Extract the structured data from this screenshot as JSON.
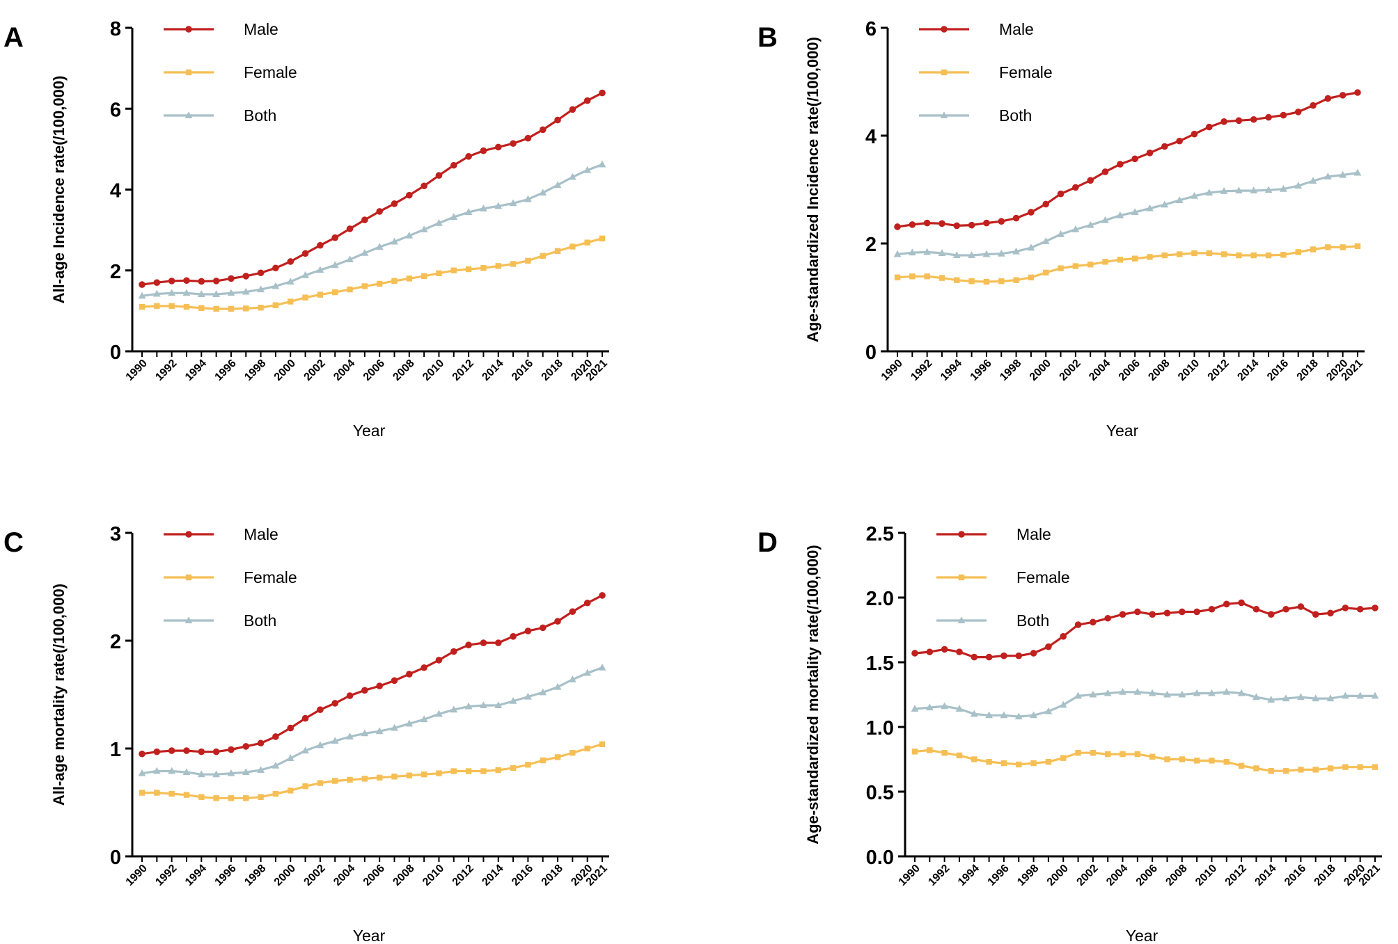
{
  "figure": {
    "years": [
      1990,
      1991,
      1992,
      1993,
      1994,
      1995,
      1996,
      1997,
      1998,
      1999,
      2000,
      2001,
      2002,
      2003,
      2004,
      2005,
      2006,
      2007,
      2008,
      2009,
      2010,
      2011,
      2012,
      2013,
      2014,
      2015,
      2016,
      2017,
      2018,
      2019,
      2020,
      2021
    ],
    "colors": {
      "Male": "#c0201e",
      "Female": "#f5bf55",
      "Both": "#a8c0c8"
    }
  },
  "chart_data": [
    {
      "panel_label": "A",
      "type": "line",
      "xlabel": "Year",
      "ylabel": "All-age Incidence rate(/100,000)",
      "ylim": [
        0,
        8
      ],
      "yticks": [
        "0",
        "2",
        "4",
        "6",
        "8"
      ],
      "xticks": [
        "1990",
        "1992",
        "1994",
        "1996",
        "1998",
        "2000",
        "2002",
        "2004",
        "2006",
        "2008",
        "2010",
        "2012",
        "2014",
        "2016",
        "2018",
        "2020",
        "2021"
      ],
      "legend_position": "top-left",
      "series": [
        {
          "name": "Male",
          "marker": "circle",
          "values": [
            1.65,
            1.7,
            1.74,
            1.75,
            1.73,
            1.74,
            1.8,
            1.86,
            1.94,
            2.06,
            2.22,
            2.42,
            2.62,
            2.81,
            3.03,
            3.25,
            3.46,
            3.65,
            3.86,
            4.09,
            4.35,
            4.6,
            4.82,
            4.96,
            5.05,
            5.14,
            5.27,
            5.48,
            5.72,
            5.98,
            6.2,
            6.39
          ]
        },
        {
          "name": "Female",
          "marker": "square",
          "values": [
            1.1,
            1.12,
            1.12,
            1.1,
            1.07,
            1.05,
            1.05,
            1.06,
            1.08,
            1.14,
            1.23,
            1.33,
            1.4,
            1.46,
            1.53,
            1.61,
            1.67,
            1.74,
            1.8,
            1.86,
            1.93,
            2.0,
            2.03,
            2.06,
            2.11,
            2.16,
            2.24,
            2.36,
            2.48,
            2.59,
            2.69,
            2.79
          ]
        },
        {
          "name": "Both",
          "marker": "triangle",
          "values": [
            1.37,
            1.42,
            1.44,
            1.44,
            1.41,
            1.41,
            1.44,
            1.47,
            1.53,
            1.61,
            1.72,
            1.88,
            2.01,
            2.13,
            2.27,
            2.43,
            2.58,
            2.71,
            2.86,
            3.01,
            3.17,
            3.32,
            3.44,
            3.53,
            3.59,
            3.66,
            3.76,
            3.92,
            4.11,
            4.31,
            4.48,
            4.62
          ]
        }
      ]
    },
    {
      "panel_label": "B",
      "type": "line",
      "xlabel": "Year",
      "ylabel": "Age-standardized Incidence rate(/100,000)",
      "ylim": [
        0,
        6
      ],
      "yticks": [
        "0",
        "2",
        "4",
        "6"
      ],
      "xticks": [
        "1990",
        "1992",
        "1994",
        "1996",
        "1998",
        "2000",
        "2002",
        "2004",
        "2006",
        "2008",
        "2010",
        "2012",
        "2014",
        "2016",
        "2018",
        "2020",
        "2021"
      ],
      "legend_position": "top-left",
      "series": [
        {
          "name": "Male",
          "marker": "circle",
          "values": [
            2.31,
            2.35,
            2.38,
            2.37,
            2.33,
            2.34,
            2.38,
            2.41,
            2.47,
            2.58,
            2.73,
            2.92,
            3.04,
            3.17,
            3.33,
            3.47,
            3.57,
            3.68,
            3.8,
            3.9,
            4.03,
            4.16,
            4.26,
            4.28,
            4.3,
            4.34,
            4.38,
            4.44,
            4.56,
            4.69,
            4.75,
            4.8
          ]
        },
        {
          "name": "Female",
          "marker": "square",
          "values": [
            1.37,
            1.39,
            1.39,
            1.36,
            1.32,
            1.3,
            1.29,
            1.3,
            1.32,
            1.37,
            1.46,
            1.54,
            1.58,
            1.61,
            1.66,
            1.7,
            1.72,
            1.75,
            1.78,
            1.8,
            1.82,
            1.82,
            1.8,
            1.78,
            1.78,
            1.78,
            1.79,
            1.84,
            1.89,
            1.93,
            1.93,
            1.95
          ]
        },
        {
          "name": "Both",
          "marker": "triangle",
          "values": [
            1.8,
            1.83,
            1.84,
            1.82,
            1.78,
            1.78,
            1.8,
            1.81,
            1.85,
            1.92,
            2.04,
            2.17,
            2.26,
            2.34,
            2.43,
            2.52,
            2.58,
            2.65,
            2.72,
            2.8,
            2.88,
            2.94,
            2.97,
            2.98,
            2.98,
            2.99,
            3.01,
            3.07,
            3.16,
            3.24,
            3.27,
            3.31
          ]
        }
      ]
    },
    {
      "panel_label": "C",
      "type": "line",
      "xlabel": "Year",
      "ylabel": "All-age mortality rate(/100,000)",
      "ylim": [
        0,
        3
      ],
      "yticks": [
        "0",
        "1",
        "2",
        "3"
      ],
      "xticks": [
        "1990",
        "1992",
        "1994",
        "1996",
        "1998",
        "2000",
        "2002",
        "2004",
        "2006",
        "2008",
        "2010",
        "2012",
        "2014",
        "2016",
        "2018",
        "2020",
        "2021"
      ],
      "legend_position": "top-left",
      "series": [
        {
          "name": "Male",
          "marker": "circle",
          "values": [
            0.95,
            0.97,
            0.98,
            0.98,
            0.97,
            0.97,
            0.99,
            1.02,
            1.05,
            1.11,
            1.19,
            1.28,
            1.36,
            1.42,
            1.49,
            1.54,
            1.58,
            1.63,
            1.69,
            1.75,
            1.82,
            1.9,
            1.96,
            1.98,
            1.98,
            2.04,
            2.09,
            2.12,
            2.18,
            2.27,
            2.35,
            2.42
          ]
        },
        {
          "name": "Female",
          "marker": "square",
          "values": [
            0.59,
            0.59,
            0.58,
            0.57,
            0.55,
            0.54,
            0.54,
            0.54,
            0.55,
            0.58,
            0.61,
            0.65,
            0.68,
            0.7,
            0.71,
            0.72,
            0.73,
            0.74,
            0.75,
            0.76,
            0.77,
            0.79,
            0.79,
            0.79,
            0.8,
            0.82,
            0.85,
            0.89,
            0.92,
            0.96,
            1.0,
            1.04
          ]
        },
        {
          "name": "Both",
          "marker": "triangle",
          "values": [
            0.77,
            0.79,
            0.79,
            0.78,
            0.76,
            0.76,
            0.77,
            0.78,
            0.8,
            0.84,
            0.91,
            0.98,
            1.03,
            1.07,
            1.11,
            1.14,
            1.16,
            1.19,
            1.23,
            1.27,
            1.32,
            1.36,
            1.39,
            1.4,
            1.4,
            1.44,
            1.48,
            1.52,
            1.57,
            1.64,
            1.7,
            1.75
          ]
        }
      ]
    },
    {
      "panel_label": "D",
      "type": "line",
      "xlabel": "Year",
      "ylabel": "Age-standardized mortality rate(/100,000)",
      "ylim": [
        0,
        2.5
      ],
      "yticks": [
        "0.0",
        "0.5",
        "1.0",
        "1.5",
        "2.0",
        "2.5"
      ],
      "xticks": [
        "1990",
        "1992",
        "1994",
        "1996",
        "1998",
        "2000",
        "2002",
        "2004",
        "2006",
        "2008",
        "2010",
        "2012",
        "2014",
        "2016",
        "2018",
        "2020",
        "2021"
      ],
      "legend_position": "top-left",
      "series": [
        {
          "name": "Male",
          "marker": "circle",
          "values": [
            1.57,
            1.58,
            1.6,
            1.58,
            1.54,
            1.54,
            1.55,
            1.55,
            1.57,
            1.62,
            1.7,
            1.79,
            1.81,
            1.84,
            1.87,
            1.89,
            1.87,
            1.88,
            1.89,
            1.89,
            1.91,
            1.95,
            1.96,
            1.91,
            1.87,
            1.91,
            1.93,
            1.87,
            1.88,
            1.92,
            1.91,
            1.92
          ]
        },
        {
          "name": "Female",
          "marker": "square",
          "values": [
            0.81,
            0.82,
            0.8,
            0.78,
            0.75,
            0.73,
            0.72,
            0.71,
            0.72,
            0.73,
            0.76,
            0.8,
            0.8,
            0.79,
            0.79,
            0.79,
            0.77,
            0.75,
            0.75,
            0.74,
            0.74,
            0.73,
            0.7,
            0.68,
            0.66,
            0.66,
            0.67,
            0.67,
            0.68,
            0.69,
            0.69,
            0.69
          ]
        },
        {
          "name": "Both",
          "marker": "triangle",
          "values": [
            1.14,
            1.15,
            1.16,
            1.14,
            1.1,
            1.09,
            1.09,
            1.08,
            1.09,
            1.12,
            1.17,
            1.24,
            1.25,
            1.26,
            1.27,
            1.27,
            1.26,
            1.25,
            1.25,
            1.26,
            1.26,
            1.27,
            1.26,
            1.23,
            1.21,
            1.22,
            1.23,
            1.22,
            1.22,
            1.24,
            1.24,
            1.24
          ]
        }
      ]
    }
  ]
}
